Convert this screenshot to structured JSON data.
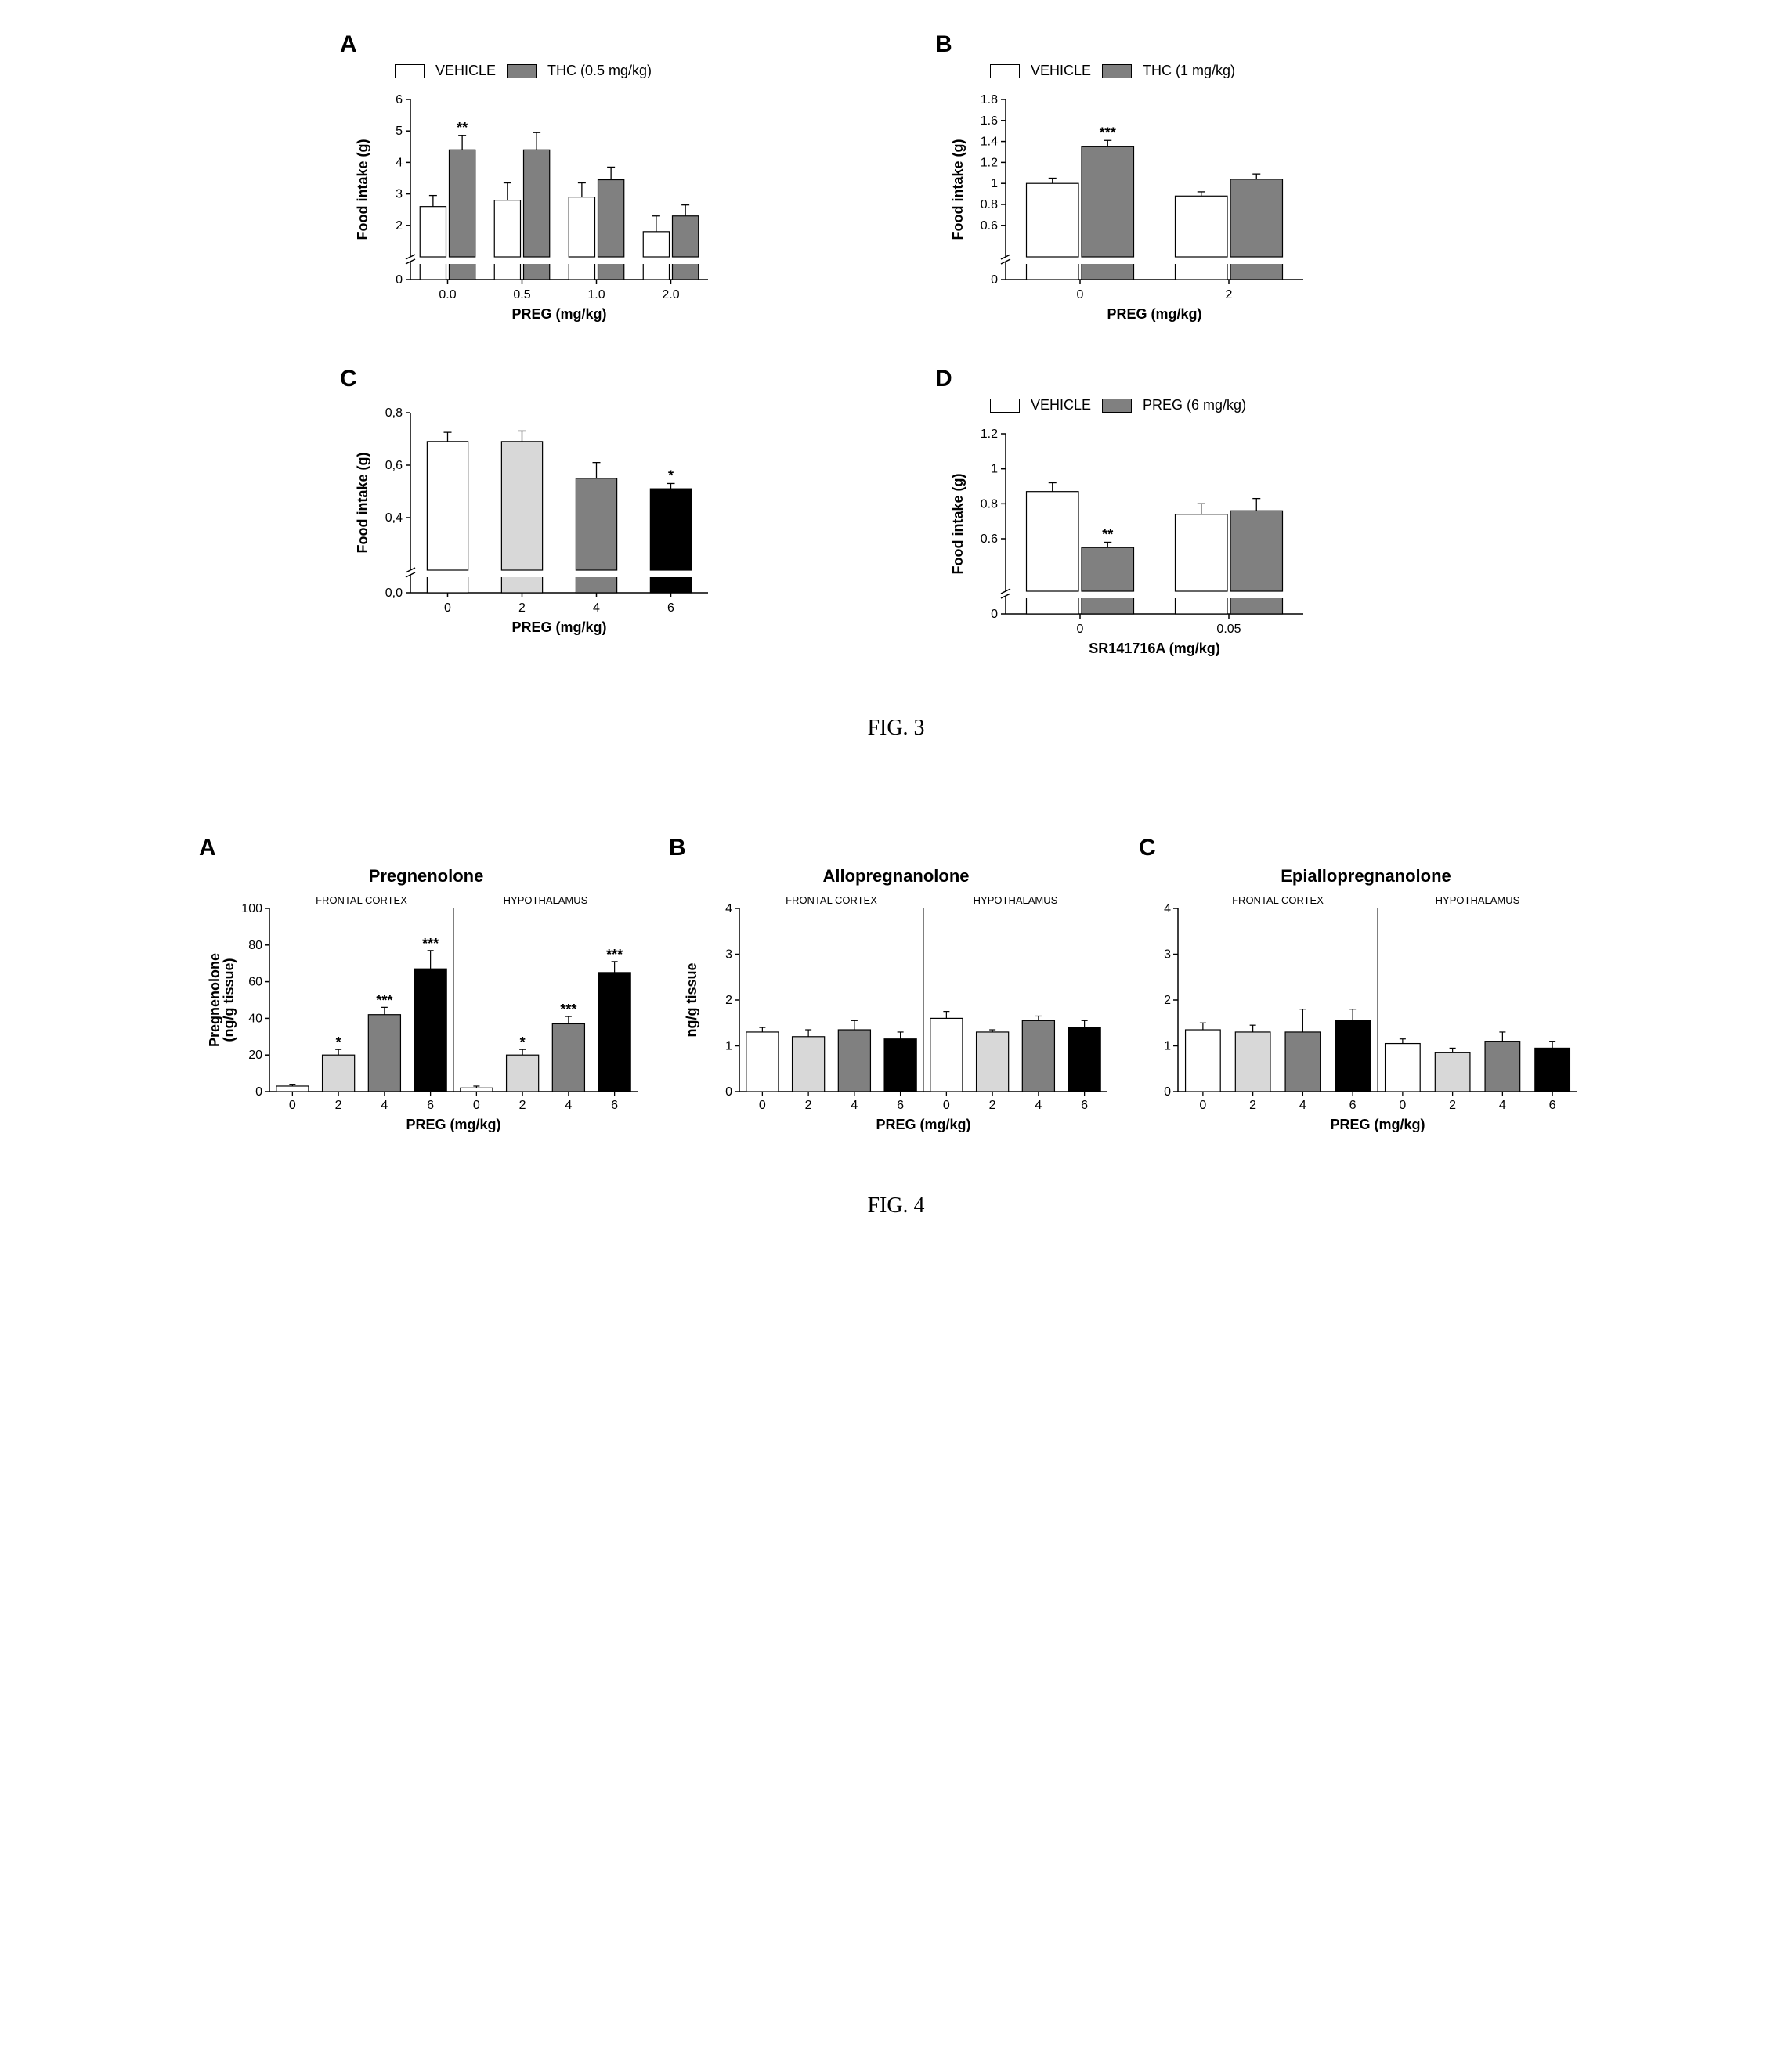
{
  "fig3": {
    "caption": "FIG. 3",
    "panels": {
      "A": {
        "letter": "A",
        "legend": [
          {
            "label": "VEHICLE",
            "fill": "#ffffff"
          },
          {
            "label": "THC (0.5 mg/kg)",
            "fill": "#808080"
          }
        ],
        "ylabel": "Food intake (g)",
        "xlabel": "PREG (mg/kg)",
        "yticks": [
          0,
          2,
          3,
          4,
          5,
          6
        ],
        "break_at": 1,
        "xcats": [
          "0.0",
          "0.5",
          "1.0",
          "2.0"
        ],
        "bars": [
          {
            "cat": "0.0",
            "series": 0,
            "val": 2.6,
            "err": 0.35
          },
          {
            "cat": "0.0",
            "series": 1,
            "val": 4.4,
            "err": 0.45,
            "sig": "**"
          },
          {
            "cat": "0.5",
            "series": 0,
            "val": 2.8,
            "err": 0.55
          },
          {
            "cat": "0.5",
            "series": 1,
            "val": 4.4,
            "err": 0.55
          },
          {
            "cat": "1.0",
            "series": 0,
            "val": 2.9,
            "err": 0.45
          },
          {
            "cat": "1.0",
            "series": 1,
            "val": 3.45,
            "err": 0.4
          },
          {
            "cat": "2.0",
            "series": 0,
            "val": 1.8,
            "err": 0.5
          },
          {
            "cat": "2.0",
            "series": 1,
            "val": 2.3,
            "err": 0.35
          }
        ],
        "fills": [
          "#ffffff",
          "#808080"
        ]
      },
      "B": {
        "letter": "B",
        "legend": [
          {
            "label": "VEHICLE",
            "fill": "#ffffff"
          },
          {
            "label": "THC (1 mg/kg)",
            "fill": "#808080"
          }
        ],
        "ylabel": "Food intake (g)",
        "xlabel": "PREG (mg/kg)",
        "yticks": [
          0.0,
          0.6,
          0.8,
          1.0,
          1.2,
          1.4,
          1.6,
          1.8
        ],
        "break_at": 0.3,
        "xcats": [
          "0",
          "2"
        ],
        "bars": [
          {
            "cat": "0",
            "series": 0,
            "val": 1.0,
            "err": 0.05
          },
          {
            "cat": "0",
            "series": 1,
            "val": 1.35,
            "err": 0.06,
            "sig": "***"
          },
          {
            "cat": "2",
            "series": 0,
            "val": 0.88,
            "err": 0.04
          },
          {
            "cat": "2",
            "series": 1,
            "val": 1.04,
            "err": 0.05
          }
        ],
        "fills": [
          "#ffffff",
          "#808080"
        ]
      },
      "C": {
        "letter": "C",
        "legend": null,
        "ylabel": "Food intake (g)",
        "xlabel": "PREG (mg/kg)",
        "yticks": [
          "0,0",
          "0,4",
          "0,6",
          "0,8"
        ],
        "ytick_vals": [
          0.0,
          0.4,
          0.6,
          0.8
        ],
        "break_at": 0.2,
        "xcats": [
          "0",
          "2",
          "4",
          "6"
        ],
        "bars": [
          {
            "cat": "0",
            "fill": "#ffffff",
            "val": 0.69,
            "err": 0.035
          },
          {
            "cat": "2",
            "fill": "#d8d8d8",
            "val": 0.69,
            "err": 0.04
          },
          {
            "cat": "4",
            "fill": "#808080",
            "val": 0.55,
            "err": 0.06
          },
          {
            "cat": "6",
            "fill": "#000000",
            "val": 0.51,
            "err": 0.02,
            "sig": "*"
          }
        ]
      },
      "D": {
        "letter": "D",
        "legend": [
          {
            "label": "VEHICLE",
            "fill": "#ffffff"
          },
          {
            "label": "PREG (6 mg/kg)",
            "fill": "#808080"
          }
        ],
        "ylabel": "Food intake (g)",
        "xlabel": "SR141716A (mg/kg)",
        "yticks": [
          0.0,
          0.6,
          0.8,
          1.0,
          1.2
        ],
        "break_at": 0.3,
        "xcats": [
          "0",
          "0.05"
        ],
        "bars": [
          {
            "cat": "0",
            "series": 0,
            "val": 0.87,
            "err": 0.05
          },
          {
            "cat": "0",
            "series": 1,
            "val": 0.55,
            "err": 0.03,
            "sig": "**"
          },
          {
            "cat": "0.05",
            "series": 0,
            "val": 0.74,
            "err": 0.06
          },
          {
            "cat": "0.05",
            "series": 1,
            "val": 0.76,
            "err": 0.07
          }
        ],
        "fills": [
          "#ffffff",
          "#808080"
        ]
      }
    }
  },
  "fig4": {
    "caption": "FIG. 4",
    "xlabel": "PREG (mg/kg)",
    "xcats": [
      "0",
      "2",
      "4",
      "6"
    ],
    "regions": [
      "FRONTAL CORTEX",
      "HYPOTHALAMUS"
    ],
    "fills": [
      "#ffffff",
      "#d8d8d8",
      "#808080",
      "#000000"
    ],
    "panels": {
      "A": {
        "letter": "A",
        "title": "Pregnenolone",
        "ylabel": "Pregnenolone\n(ng/g tissue)",
        "yticks": [
          0,
          20,
          40,
          60,
          80,
          100
        ],
        "data": {
          "FRONTAL CORTEX": [
            {
              "val": 3,
              "err": 1
            },
            {
              "val": 20,
              "err": 3,
              "sig": "*"
            },
            {
              "val": 42,
              "err": 4,
              "sig": "***"
            },
            {
              "val": 67,
              "err": 10,
              "sig": "***"
            }
          ],
          "HYPOTHALAMUS": [
            {
              "val": 2,
              "err": 1
            },
            {
              "val": 20,
              "err": 3,
              "sig": "*"
            },
            {
              "val": 37,
              "err": 4,
              "sig": "***"
            },
            {
              "val": 65,
              "err": 6,
              "sig": "***"
            }
          ]
        }
      },
      "B": {
        "letter": "B",
        "title": "Allopregnanolone",
        "ylabel": "ng/g tissue",
        "yticks": [
          0,
          1,
          2,
          3,
          4
        ],
        "data": {
          "FRONTAL CORTEX": [
            {
              "val": 1.3,
              "err": 0.1
            },
            {
              "val": 1.2,
              "err": 0.15
            },
            {
              "val": 1.35,
              "err": 0.2
            },
            {
              "val": 1.15,
              "err": 0.15
            }
          ],
          "HYPOTHALAMUS": [
            {
              "val": 1.6,
              "err": 0.15
            },
            {
              "val": 1.3,
              "err": 0.05
            },
            {
              "val": 1.55,
              "err": 0.1
            },
            {
              "val": 1.4,
              "err": 0.15
            }
          ]
        }
      },
      "C": {
        "letter": "C",
        "title": "Epiallopregnanolone",
        "ylabel": null,
        "yticks": [
          0,
          1,
          2,
          3,
          4
        ],
        "data": {
          "FRONTAL CORTEX": [
            {
              "val": 1.35,
              "err": 0.15
            },
            {
              "val": 1.3,
              "err": 0.15
            },
            {
              "val": 1.3,
              "err": 0.5
            },
            {
              "val": 1.55,
              "err": 0.25
            }
          ],
          "HYPOTHALAMUS": [
            {
              "val": 1.05,
              "err": 0.1
            },
            {
              "val": 0.85,
              "err": 0.1
            },
            {
              "val": 1.1,
              "err": 0.2
            },
            {
              "val": 0.95,
              "err": 0.15
            }
          ]
        }
      }
    }
  },
  "colors": {
    "axis": "#000000",
    "err": "#000000"
  }
}
